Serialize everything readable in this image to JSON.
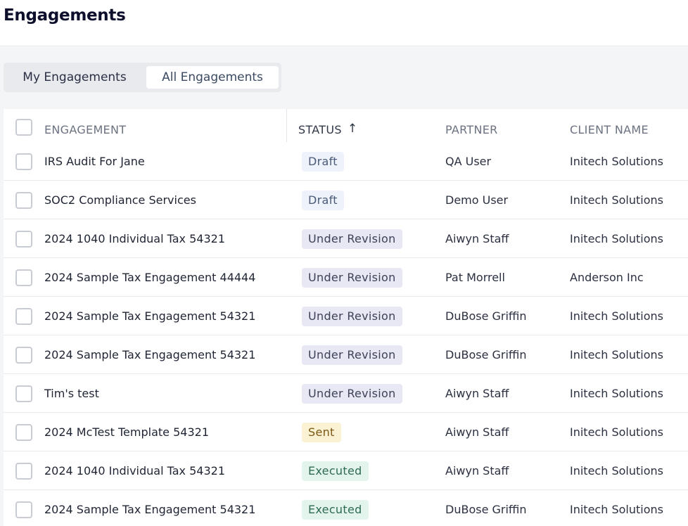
{
  "page": {
    "title": "Engagements"
  },
  "tabs": [
    {
      "label": "My Engagements",
      "active": false
    },
    {
      "label": "All Engagements",
      "active": true
    }
  ],
  "table": {
    "columns": {
      "engagement": "ENGAGEMENT",
      "status": "STATUS",
      "partner": "PARTNER",
      "client": "CLIENT NAME"
    },
    "sort": {
      "column": "STATUS",
      "direction": "ascending",
      "icon": "arrow-up-icon"
    },
    "rows": [
      {
        "engagement": "IRS Audit For Jane",
        "status": "Draft",
        "partner": "QA User",
        "client": "Initech Solutions"
      },
      {
        "engagement": "SOC2 Compliance Services",
        "status": "Draft",
        "partner": "Demo User",
        "client": "Initech Solutions"
      },
      {
        "engagement": "2024 1040 Individual Tax 54321",
        "status": "Under Revision",
        "partner": "Aiwyn Staff",
        "client": "Initech Solutions"
      },
      {
        "engagement": "2024 Sample Tax Engagement 44444",
        "status": "Under Revision",
        "partner": "Pat Morrell",
        "client": "Anderson Inc"
      },
      {
        "engagement": "2024 Sample Tax Engagement 54321",
        "status": "Under Revision",
        "partner": "DuBose Griffin",
        "client": "Initech Solutions"
      },
      {
        "engagement": "2024 Sample Tax Engagement 54321",
        "status": "Under Revision",
        "partner": "DuBose Griffin",
        "client": "Initech Solutions"
      },
      {
        "engagement": "Tim's test",
        "status": "Under Revision",
        "partner": "Aiwyn Staff",
        "client": "Initech Solutions"
      },
      {
        "engagement": "2024 McTest Template 54321",
        "status": "Sent",
        "partner": "Aiwyn Staff",
        "client": "Initech Solutions"
      },
      {
        "engagement": "2024 1040 Individual Tax 54321",
        "status": "Executed",
        "partner": "Aiwyn Staff",
        "client": "Initech Solutions"
      },
      {
        "engagement": "2024 Sample Tax Engagement 54321",
        "status": "Executed",
        "partner": "DuBose Griffin",
        "client": "Initech Solutions"
      }
    ]
  },
  "colors": {
    "draft": "#eef3fb",
    "under_revision": "#e8e7f4",
    "sent": "#fbf1d3",
    "executed": "#e2f4ec"
  }
}
